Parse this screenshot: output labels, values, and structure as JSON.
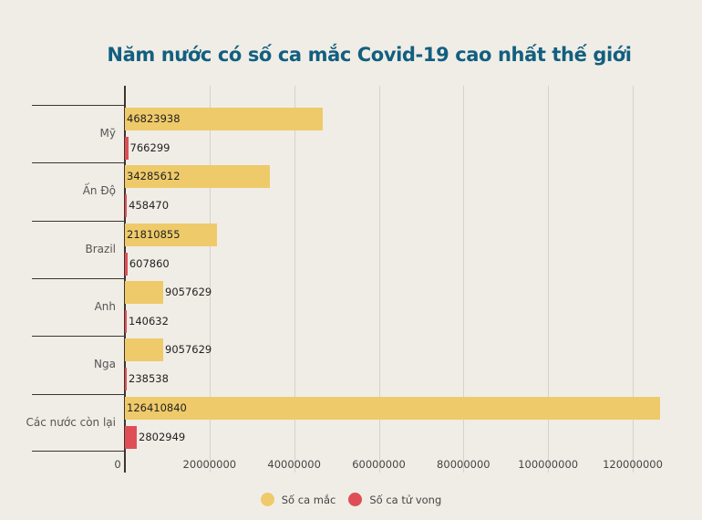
{
  "title": "Năm nước có số ca mắc Covid-19 cao nhất thế giới",
  "legend": [
    {
      "label": "Số ca mắc",
      "color": "#efca6a"
    },
    {
      "label": "Số ca tử vong",
      "color": "#df4e55"
    }
  ],
  "x_ticks": [
    "0",
    "20000000",
    "40000000",
    "60000000",
    "80000000",
    "100000000",
    "120000000"
  ],
  "rows": [
    {
      "label": "Mỹ",
      "cases": "46823938",
      "deaths": "766299"
    },
    {
      "label": "Ấn Độ",
      "cases": "34285612",
      "deaths": "458470"
    },
    {
      "label": "Brazil",
      "cases": "21810855",
      "deaths": "607860"
    },
    {
      "label": "Anh",
      "cases": "9057629",
      "deaths": "140632"
    },
    {
      "label": "Nga",
      "cases": "9057629",
      "deaths": "238538"
    },
    {
      "label": "Các nước còn lại",
      "cases": "126410840",
      "deaths": "2802949"
    }
  ],
  "chart_data": {
    "type": "bar",
    "orientation": "horizontal",
    "title": "Năm nước có số ca mắc Covid-19 cao nhất thế giới",
    "categories": [
      "Mỹ",
      "Ấn Độ",
      "Brazil",
      "Anh",
      "Nga",
      "Các nước còn lại"
    ],
    "series": [
      {
        "name": "Số ca mắc",
        "color": "#efca6a",
        "values": [
          46823938,
          34285612,
          21810855,
          9057629,
          9057629,
          126410840
        ]
      },
      {
        "name": "Số ca tử vong",
        "color": "#df4e55",
        "values": [
          766299,
          458470,
          607860,
          140632,
          238538,
          2802949
        ]
      }
    ],
    "xlabel": "",
    "ylabel": "",
    "xlim": [
      0,
      130000000
    ],
    "x_ticks": [
      0,
      20000000,
      40000000,
      60000000,
      80000000,
      100000000,
      120000000
    ],
    "grid": true,
    "legend_position": "bottom",
    "data_labels": true
  }
}
